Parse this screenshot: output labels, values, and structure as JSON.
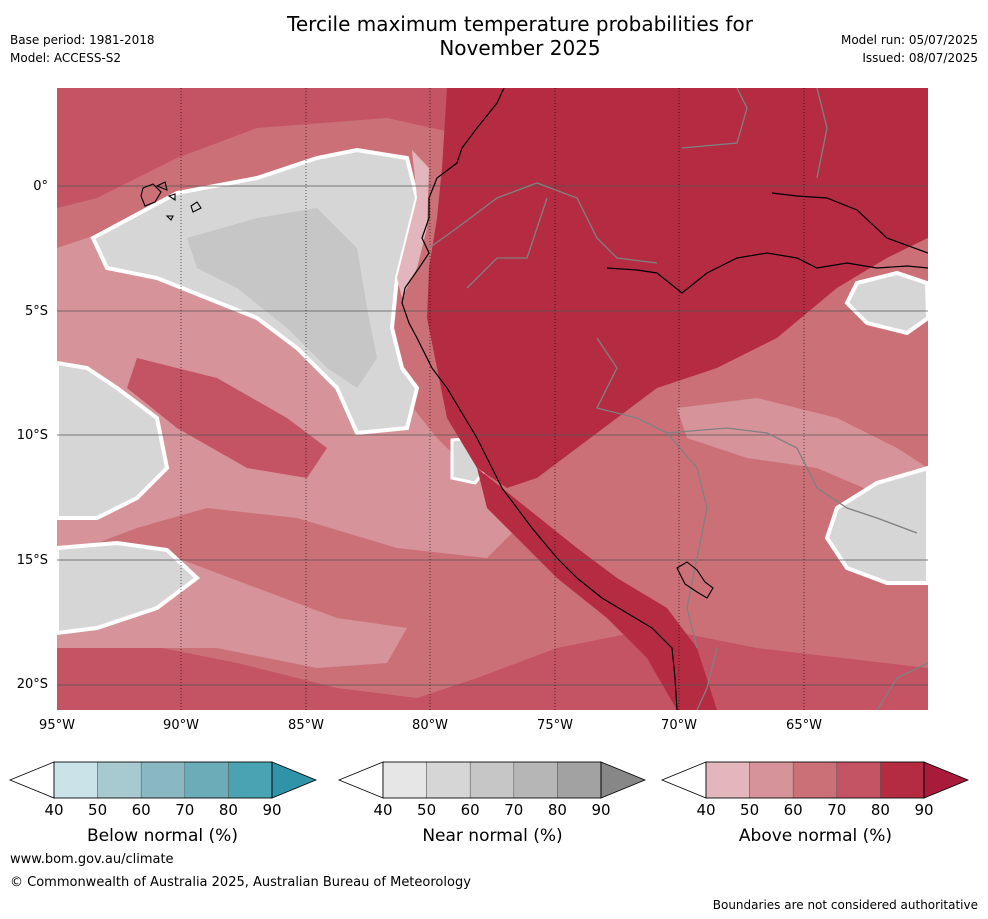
{
  "header": {
    "title_line1": "Tercile maximum temperature probabilities for",
    "title_line2": "November 2025",
    "base_period": "Base period: 1981-2018",
    "model": "Model: ACCESS-S2",
    "model_run": "Model run: 05/07/2025",
    "issued": "Issued: 08/07/2025"
  },
  "map": {
    "lat_labels": [
      "0°",
      "5°S",
      "10°S",
      "15°S",
      "20°S"
    ],
    "lon_labels": [
      "95°W",
      "90°W",
      "85°W",
      "80°W",
      "75°W",
      "70°W",
      "65°W"
    ],
    "lon_range": [
      -95,
      -60
    ],
    "lat_range": [
      -21,
      4
    ]
  },
  "legend": {
    "ticks": [
      "40",
      "50",
      "60",
      "70",
      "80",
      "90"
    ],
    "below": {
      "label": "Below normal (%)",
      "colors": [
        "#ffffff",
        "#c9e3e8",
        "#a7cad0",
        "#89b8c3",
        "#6cacb8",
        "#4aa3b3",
        "#3193a8"
      ]
    },
    "near": {
      "label": "Near normal (%)",
      "colors": [
        "#ffffff",
        "#e6e6e6",
        "#d6d6d6",
        "#c6c6c6",
        "#b6b6b6",
        "#a2a2a2",
        "#878787"
      ]
    },
    "above": {
      "label": "Above normal (%)",
      "colors": [
        "#ffffff",
        "#e2b6bc",
        "#d6939a",
        "#cc7078",
        "#c45464",
        "#b52c42",
        "#a81b3a"
      ]
    }
  },
  "footer": {
    "website": "www.bom.gov.au/climate",
    "copyright": "© Commonwealth of Australia 2025, Australian Bureau of Meteorology",
    "disclaimer": "Boundaries are not considered authoritative"
  }
}
